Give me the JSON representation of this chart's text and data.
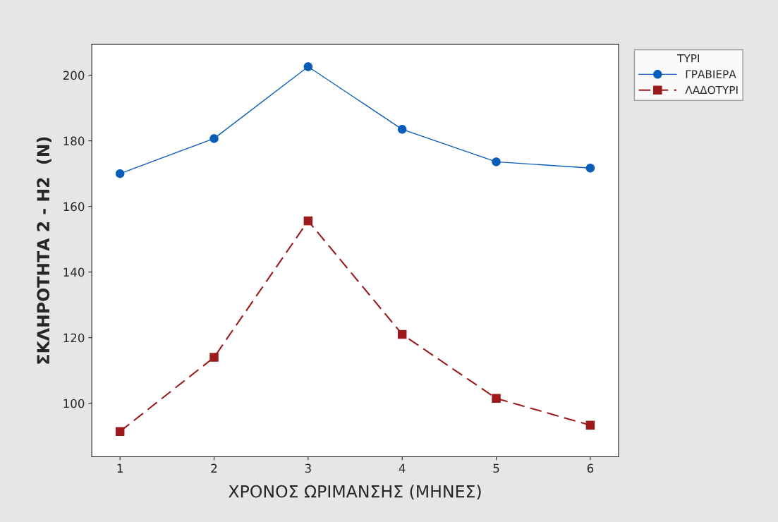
{
  "chart_data": {
    "type": "line",
    "xlabel": "ΧΡΟΝΟΣ ΩΡΙΜΑΝΣΗΣ (ΜΗΝΕΣ)",
    "ylabel": "ΣΚΛΗΡΟΤΗΤΑ 2 - H2  (N)",
    "legend_title": "ΤΥΡΙ",
    "x": [
      1,
      2,
      3,
      4,
      5,
      6
    ],
    "series": [
      {
        "name": "ΓΡΑΒΙΕΡΑ",
        "color": "#0a5db8",
        "marker": "circle",
        "line_style": "solid",
        "values": [
          170.0,
          180.7,
          202.6,
          183.5,
          173.6,
          171.7
        ]
      },
      {
        "name": "ΛΑΔΟΤΥΡΙ",
        "color": "#9c1a1c",
        "marker": "square",
        "line_style": "dashed",
        "values": [
          91.4,
          114.0,
          155.6,
          121.0,
          101.5,
          93.3
        ]
      }
    ],
    "xlim": [
      0.7,
      6.3
    ],
    "xticks": [
      1,
      2,
      3,
      4,
      5,
      6
    ],
    "ylim": [
      83.7,
      209.4
    ],
    "yticks": [
      100,
      120,
      140,
      160,
      180,
      200
    ],
    "grid": false,
    "legend": "top right"
  }
}
